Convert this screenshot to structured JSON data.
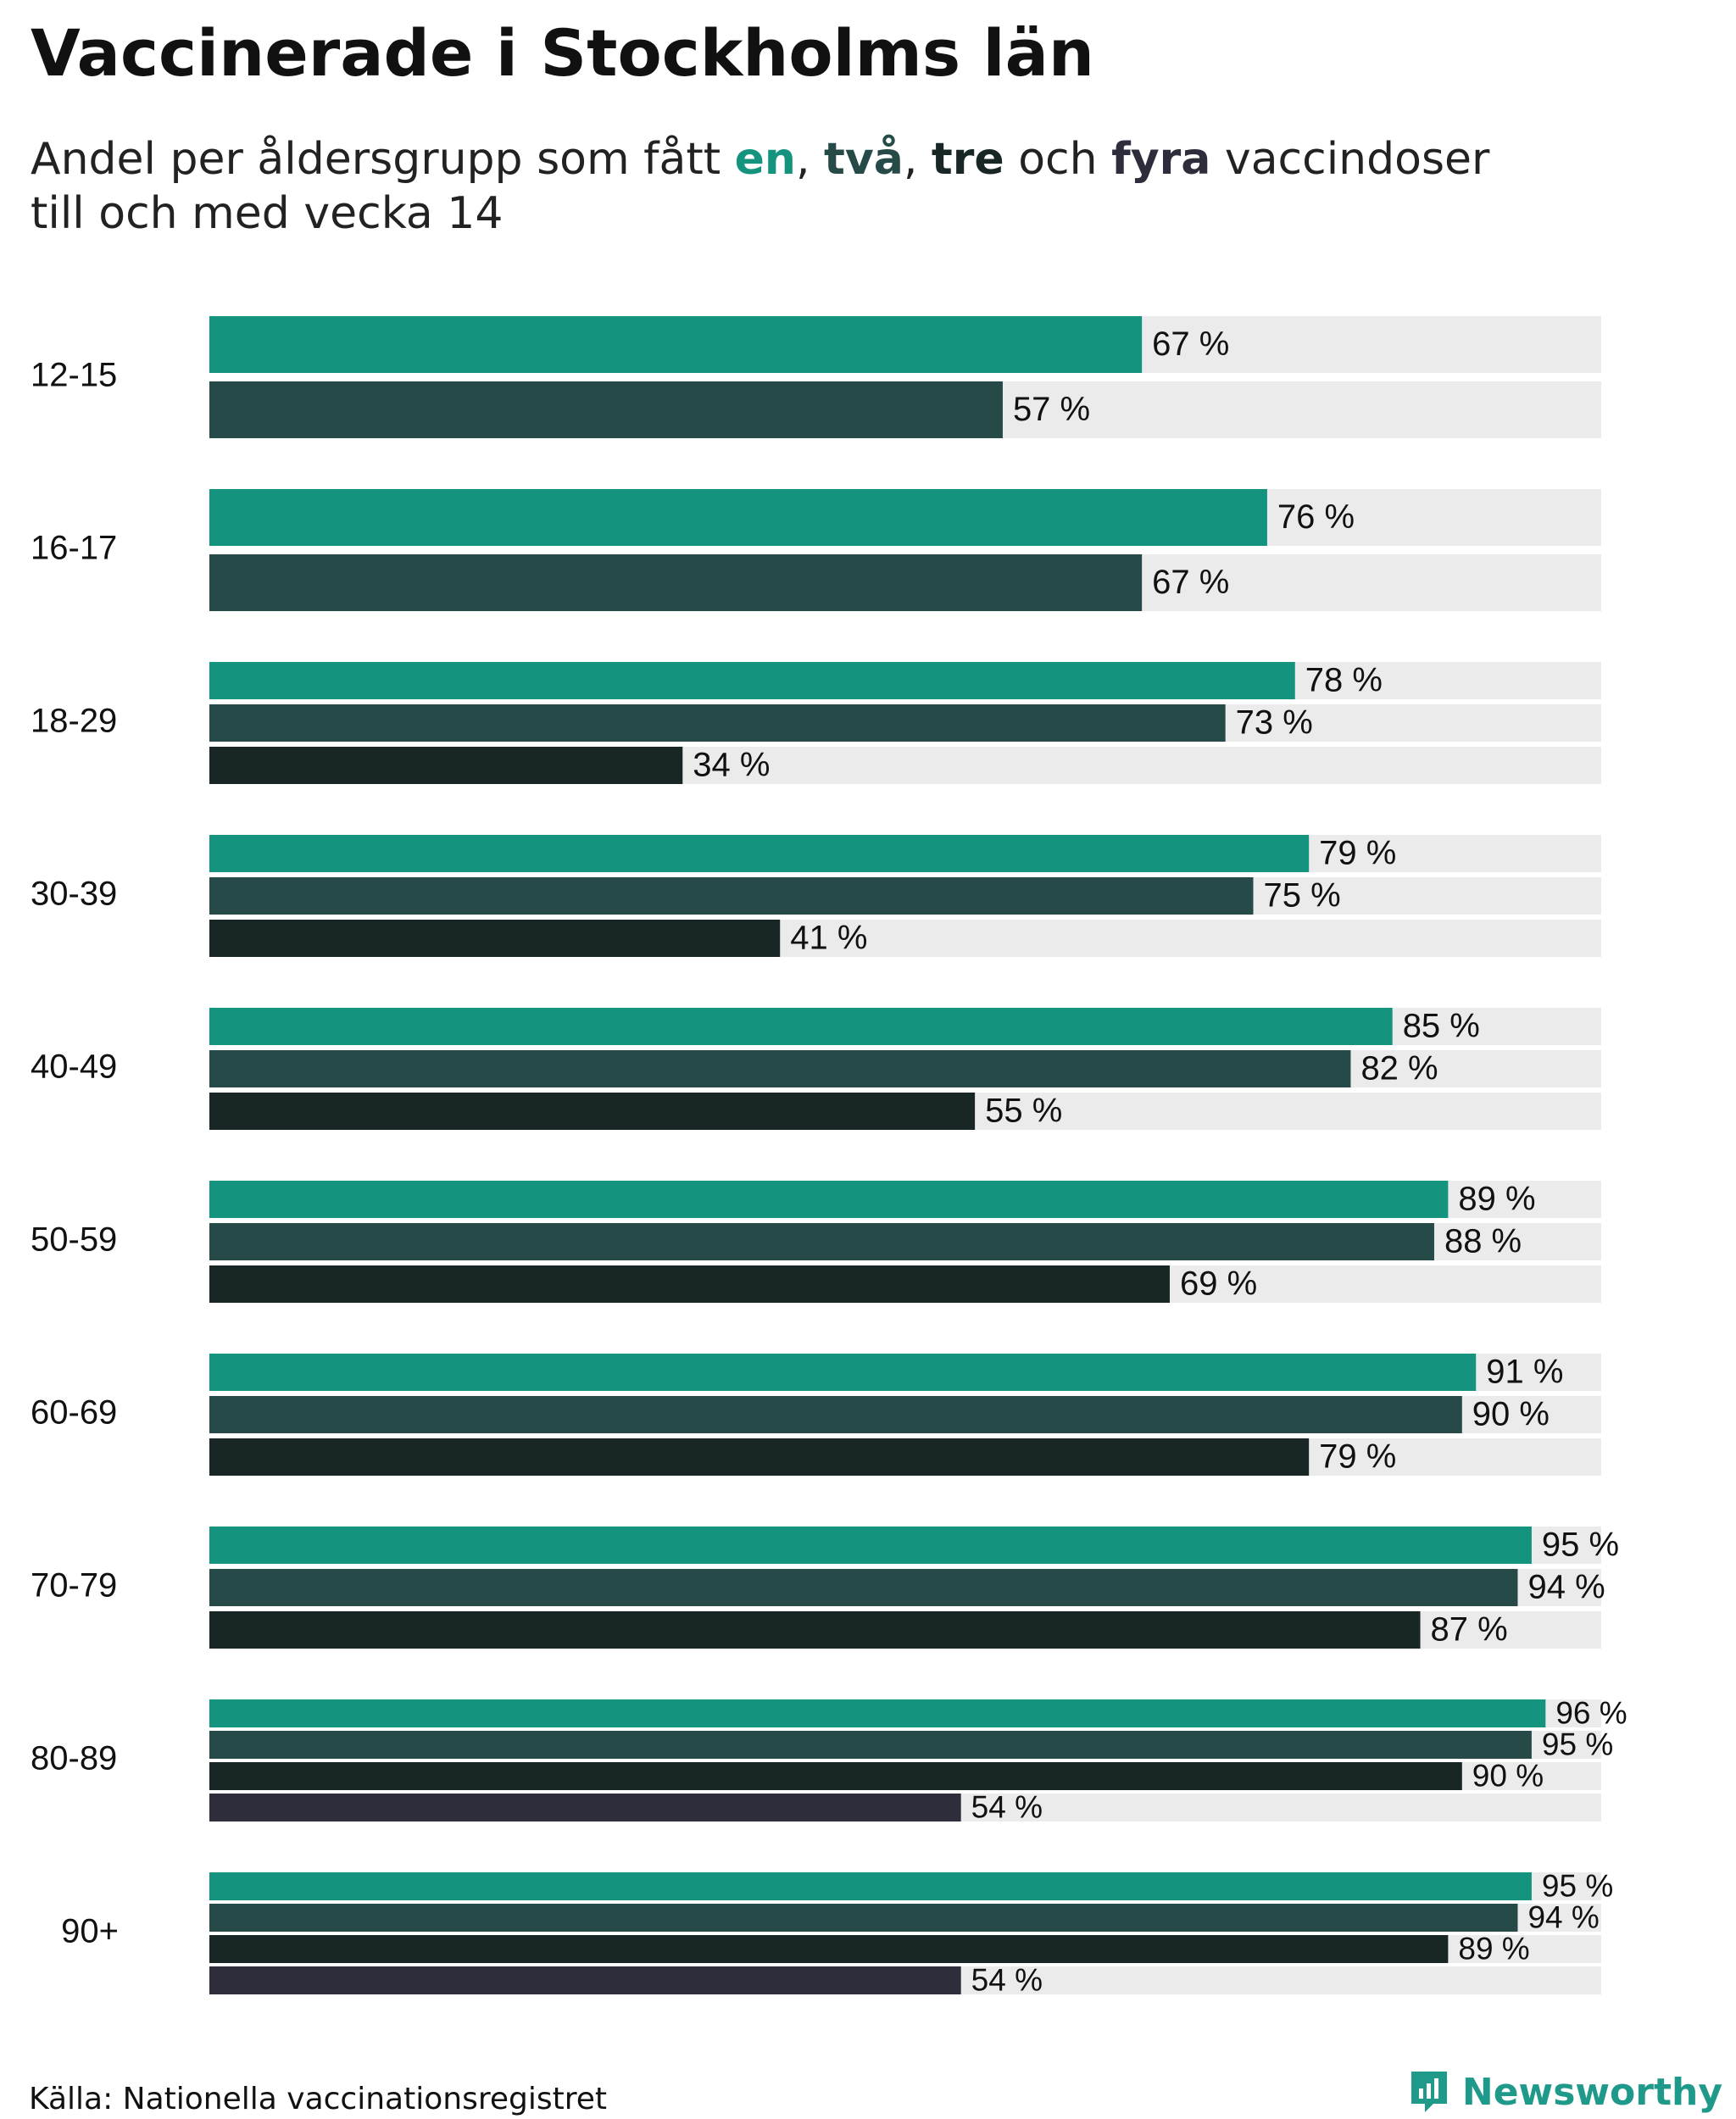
{
  "title": "Vaccinerade i Stockholms län",
  "subtitle": {
    "line1_prefix": "Andel per åldersgrupp som fått ",
    "dose1": "en",
    "sep1": ", ",
    "dose2": "två",
    "sep2": ", ",
    "dose3": "tre",
    "sep3": " och ",
    "dose4": "fyra",
    "line1_suffix": " vaccindoser",
    "line2": "till och med vecka 14"
  },
  "colors": {
    "dose1": "#14947f",
    "dose2": "#264a47",
    "dose3": "#182726",
    "dose4": "#2e2d3b",
    "track": "#ebebeb",
    "brand": "#1f9a8a"
  },
  "source": "Källa: Nationella vaccinationsregistret",
  "brand": {
    "name": "Newsworthy",
    "icon": "newsworthy-logo-icon"
  },
  "chart_data": {
    "type": "bar",
    "orientation": "horizontal",
    "title": "Vaccinerade i Stockholms län",
    "xlim": [
      0,
      100
    ],
    "unit": "%",
    "value_suffix": " %",
    "grid": false,
    "categories": [
      "12-15",
      "16-17",
      "18-29",
      "30-39",
      "40-49",
      "50-59",
      "60-69",
      "70-79",
      "80-89",
      "90+"
    ],
    "series": [
      {
        "name": "en",
        "values": [
          67,
          76,
          78,
          79,
          85,
          89,
          91,
          95,
          96,
          95
        ]
      },
      {
        "name": "två",
        "values": [
          57,
          67,
          73,
          75,
          82,
          88,
          90,
          94,
          95,
          94
        ]
      },
      {
        "name": "tre",
        "values": [
          null,
          null,
          34,
          41,
          55,
          69,
          79,
          87,
          90,
          89
        ]
      },
      {
        "name": "fyra",
        "values": [
          null,
          null,
          null,
          null,
          null,
          null,
          null,
          null,
          54,
          54
        ]
      }
    ]
  }
}
